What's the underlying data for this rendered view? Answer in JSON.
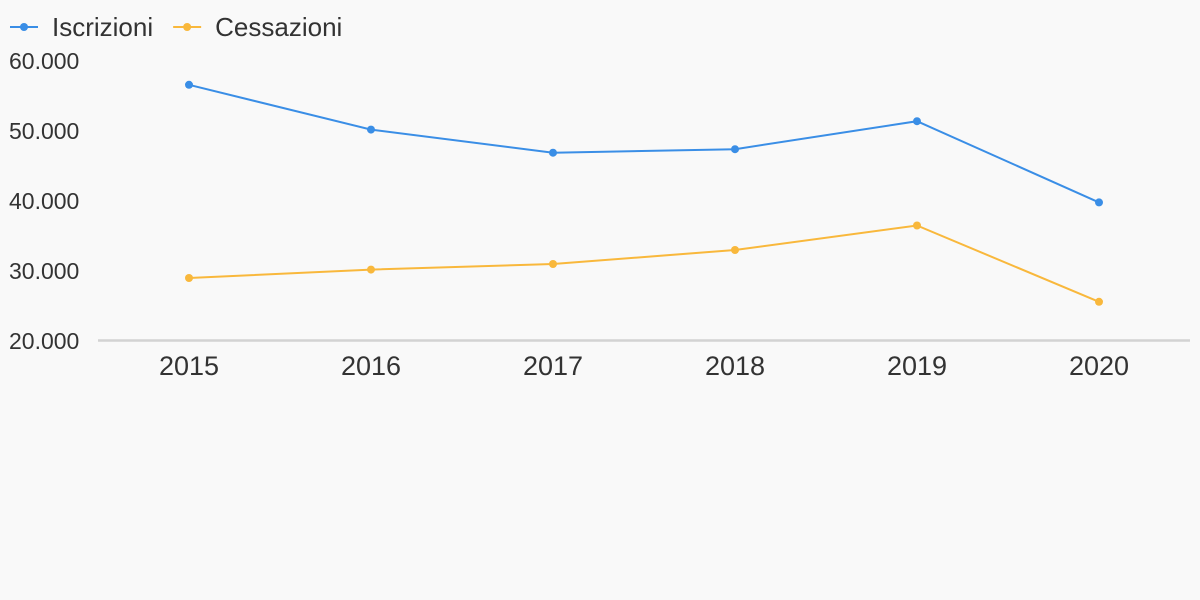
{
  "chart_data": {
    "type": "line",
    "categories": [
      "2015",
      "2016",
      "2017",
      "2018",
      "2019",
      "2020"
    ],
    "series": [
      {
        "name": "Iscrizioni",
        "color": "#3a8ee6",
        "values": [
          56600,
          50200,
          46900,
          47400,
          51400,
          39800
        ]
      },
      {
        "name": "Cessazioni",
        "color": "#f9b83c",
        "values": [
          29000,
          30200,
          31000,
          33000,
          36500,
          25600
        ]
      }
    ],
    "y_ticks": [
      {
        "value": 20000,
        "label": "20.000"
      },
      {
        "value": 30000,
        "label": "30.000"
      },
      {
        "value": 40000,
        "label": "40.000"
      },
      {
        "value": 50000,
        "label": "50.000"
      },
      {
        "value": 60000,
        "label": "60.000"
      }
    ],
    "ylim": [
      20000,
      60000
    ],
    "legend_position": "top-left",
    "grid": false,
    "axis_color": "#d3d3d3"
  }
}
